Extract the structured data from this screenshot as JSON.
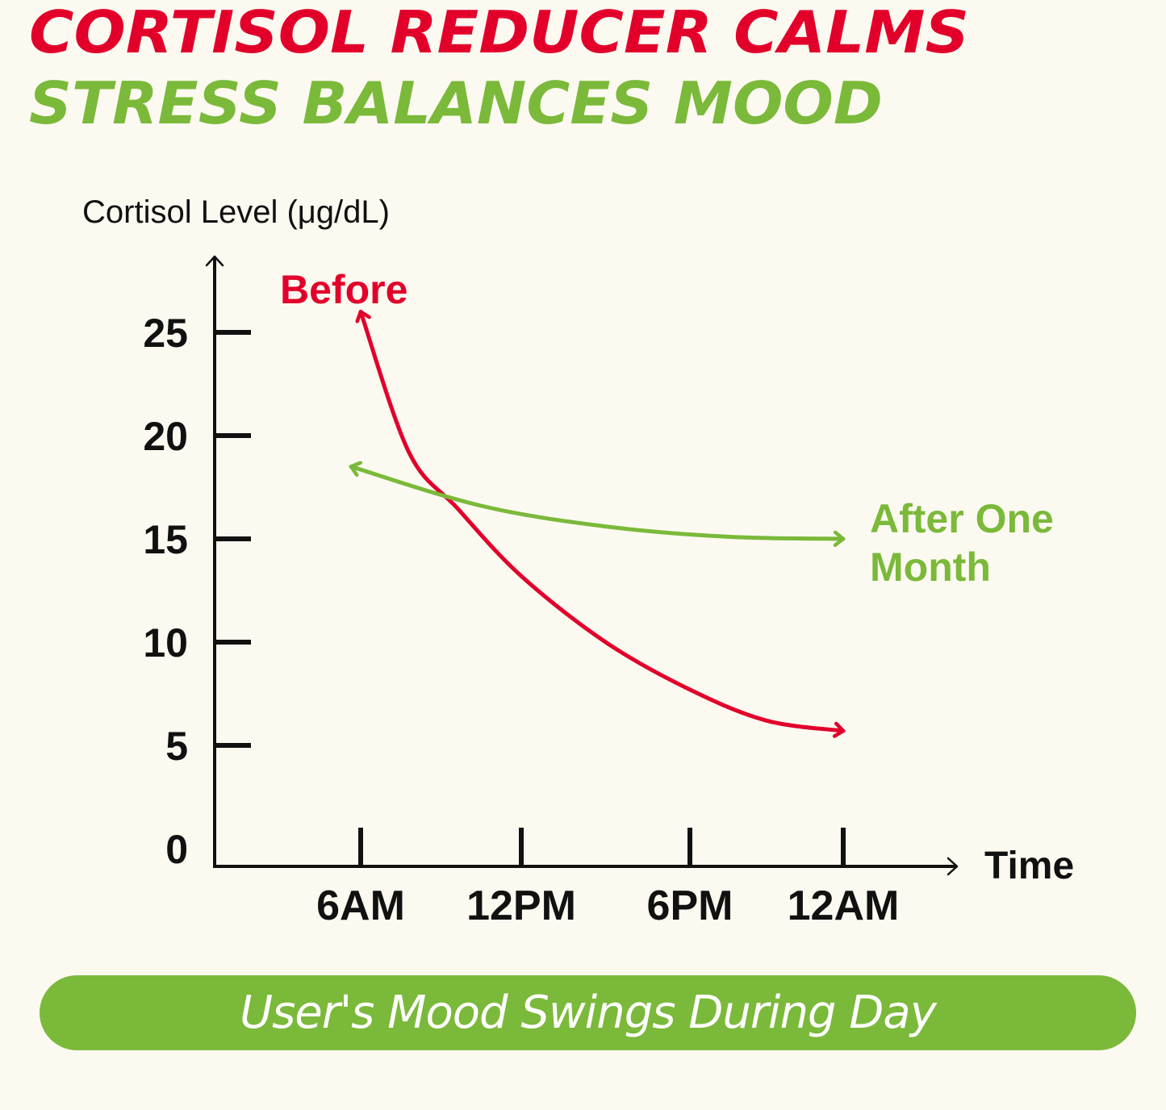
{
  "header": {
    "line1": "CORTISOL REDUCER CALMS",
    "line2": "STRESS BALANCES MOOD"
  },
  "banner": {
    "text": "User's Mood Swings During Day"
  },
  "colors": {
    "red": "#e2002b",
    "green": "#7bb93a",
    "axis": "#111111",
    "background": "#fcfaf0"
  },
  "chart_data": {
    "type": "line",
    "title": "",
    "xlabel": "Time",
    "ylabel": "Cortisol Level (μg/dL)",
    "categories": [
      "6AM",
      "12PM",
      "6PM",
      "12AM"
    ],
    "y_ticks": [
      0,
      5,
      10,
      15,
      20,
      25
    ],
    "ylim": [
      0,
      25
    ],
    "grid": false,
    "series": [
      {
        "name": "Before",
        "color": "#e2002b",
        "x": [
          0,
          0.3,
          0.6,
          1,
          1.5,
          2,
          2.5,
          3
        ],
        "values": [
          26,
          19.2,
          16.5,
          13.2,
          10,
          7.7,
          6.2,
          5.7
        ]
      },
      {
        "name": "After One Month",
        "color": "#7bb93a",
        "x": [
          0,
          0.75,
          1.5,
          2.25,
          3
        ],
        "values": [
          18.5,
          16.6,
          15.6,
          15.1,
          15.0
        ]
      }
    ]
  }
}
